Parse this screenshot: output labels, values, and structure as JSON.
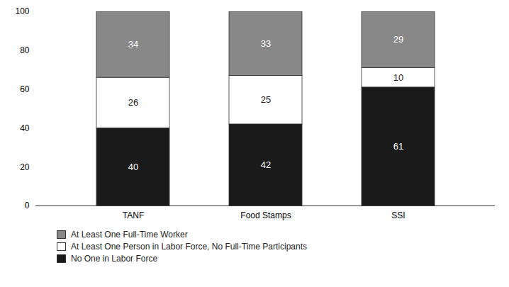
{
  "chart_data": {
    "type": "bar",
    "stacked": true,
    "categories": [
      "TANF",
      "Food Stamps",
      "SSI"
    ],
    "series": [
      {
        "name": "No One in Labor Force",
        "color": "#1a1a1a",
        "values": [
          40,
          42,
          61
        ]
      },
      {
        "name": "At Least One Person in Labor Force, No Full-Time Participants",
        "color": "#ffffff",
        "values": [
          26,
          25,
          10
        ]
      },
      {
        "name": "At Least One Full-Time Worker",
        "color": "#888888",
        "values": [
          34,
          33,
          29
        ]
      }
    ],
    "ylim": [
      0,
      100
    ],
    "yticks": [
      0,
      20,
      40,
      60,
      80,
      100
    ],
    "grid": false,
    "legend": "below",
    "data_labels": true
  }
}
